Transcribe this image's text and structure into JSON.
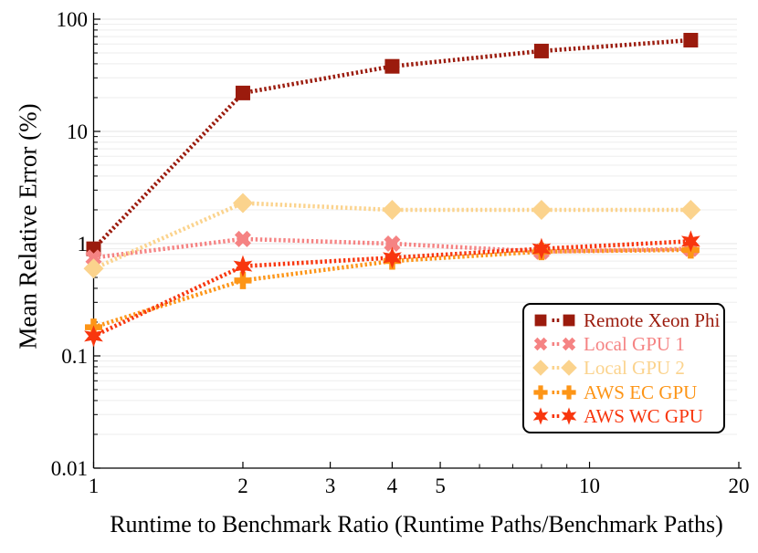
{
  "figure": {
    "background": "#ffffff",
    "axis_color": "#000000",
    "grid_color": "#ededed",
    "grid_major_color": "#e6e6e6"
  },
  "chart_data": {
    "type": "line",
    "title": "",
    "xlabel": "Runtime to Benchmark Ratio (Runtime Paths/Benchmark Paths)",
    "ylabel": "Mean Relative Error (%)",
    "xscale": "log",
    "yscale": "log",
    "xlim": [
      1,
      20
    ],
    "ylim": [
      0.01,
      100
    ],
    "x_ticks": [
      1,
      2,
      3,
      4,
      5,
      10,
      20
    ],
    "x_tick_labels": [
      "1",
      "2",
      "3",
      "4",
      "5",
      "10",
      "20"
    ],
    "x_minor_ticks": [
      6,
      7,
      8,
      9
    ],
    "y_ticks": [
      100,
      10,
      1,
      0.1,
      0.01
    ],
    "y_tick_labels": [
      "100",
      "10",
      "1",
      "0.1",
      "0.01"
    ],
    "grid": "horizontal-log-minor",
    "line_style": "dense-dotted",
    "legend_position": "inside-right-middle",
    "x": [
      1,
      2,
      4,
      8,
      16
    ],
    "series": [
      {
        "name": "Remote Xeon Phi",
        "color": "#9B1B0D",
        "marker": "square",
        "values": [
          0.9,
          22,
          38,
          52,
          65
        ]
      },
      {
        "name": "Local GPU 1",
        "color": "#F58383",
        "marker": "x",
        "values": [
          0.75,
          1.1,
          1.0,
          0.85,
          0.9
        ]
      },
      {
        "name": "Local GPU 2",
        "color": "#FBD38D",
        "marker": "diamond",
        "values": [
          0.6,
          2.3,
          2.0,
          2.0,
          2.0
        ]
      },
      {
        "name": "AWS EC GPU",
        "color": "#FD9517",
        "marker": "plus",
        "values": [
          0.18,
          0.47,
          0.7,
          0.85,
          0.88
        ]
      },
      {
        "name": "AWS WC GPU",
        "color": "#F8360E",
        "marker": "star6",
        "values": [
          0.15,
          0.63,
          0.75,
          0.9,
          1.05
        ]
      }
    ]
  }
}
